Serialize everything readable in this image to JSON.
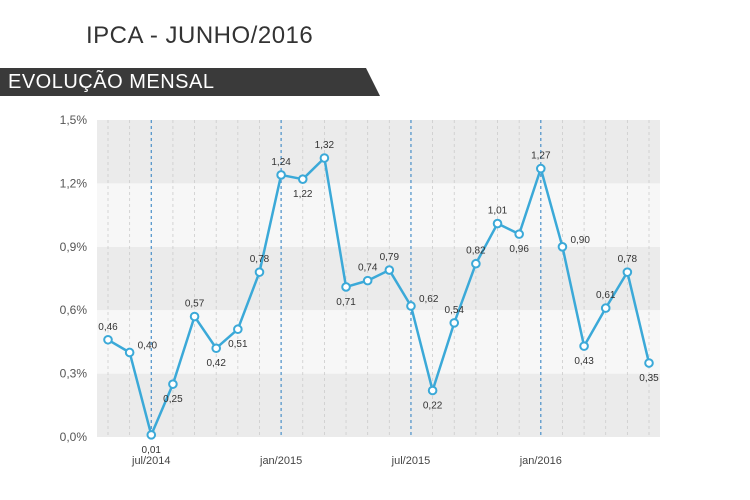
{
  "header": {
    "title": "IPCA - JUNHO/2016",
    "banner": "EVOLUÇÃO MENSAL"
  },
  "colors": {
    "line": "#3ba9d8",
    "band_dark": "#ebebeb",
    "band_light": "#f7f7f7",
    "banner": "#3a3a3a",
    "grid": "#cccccc",
    "marker_line": "#4a90c8"
  },
  "chart_data": {
    "type": "line",
    "title": "IPCA - JUNHO/2016",
    "subtitle": "EVOLUÇÃO MENSAL",
    "xlabel": "",
    "ylabel": "",
    "ylim": [
      0,
      1.5
    ],
    "yticks": [
      "0,0%",
      "0,3%",
      "0,6%",
      "0,9%",
      "1,2%",
      "1,5%"
    ],
    "ytick_values": [
      0,
      0.3,
      0.6,
      0.9,
      1.2,
      1.5
    ],
    "x_labels": [
      {
        "index": 2,
        "label": "jul/2014"
      },
      {
        "index": 8,
        "label": "jan/2015"
      },
      {
        "index": 14,
        "label": "jul/2015"
      },
      {
        "index": 20,
        "label": "jan/2016"
      }
    ],
    "values": [
      0.46,
      0.4,
      0.01,
      0.25,
      0.57,
      0.42,
      0.51,
      0.78,
      1.24,
      1.22,
      1.32,
      0.71,
      0.74,
      0.79,
      0.62,
      0.22,
      0.54,
      0.82,
      1.01,
      0.96,
      1.27,
      0.9,
      0.43,
      0.61,
      0.78,
      0.35
    ],
    "labels": [
      "0,46",
      "0,40",
      "0,01",
      "0,25",
      "0,57",
      "0,42",
      "0,51",
      "0,78",
      "1,24",
      "1,22",
      "1,32",
      "0,71",
      "0,74",
      "0,79",
      "0,62",
      "0,22",
      "0,54",
      "0,82",
      "1,01",
      "0,96",
      "1,27",
      "0,90",
      "0,43",
      "0,61",
      "0,78",
      "0,35"
    ],
    "label_pos": [
      "above",
      "right",
      "below",
      "below",
      "above",
      "below",
      "below",
      "above",
      "above",
      "below",
      "above",
      "below",
      "above",
      "above",
      "right",
      "below",
      "above",
      "above",
      "above",
      "below",
      "above",
      "right",
      "below",
      "above",
      "above",
      "below"
    ],
    "grid": true
  }
}
